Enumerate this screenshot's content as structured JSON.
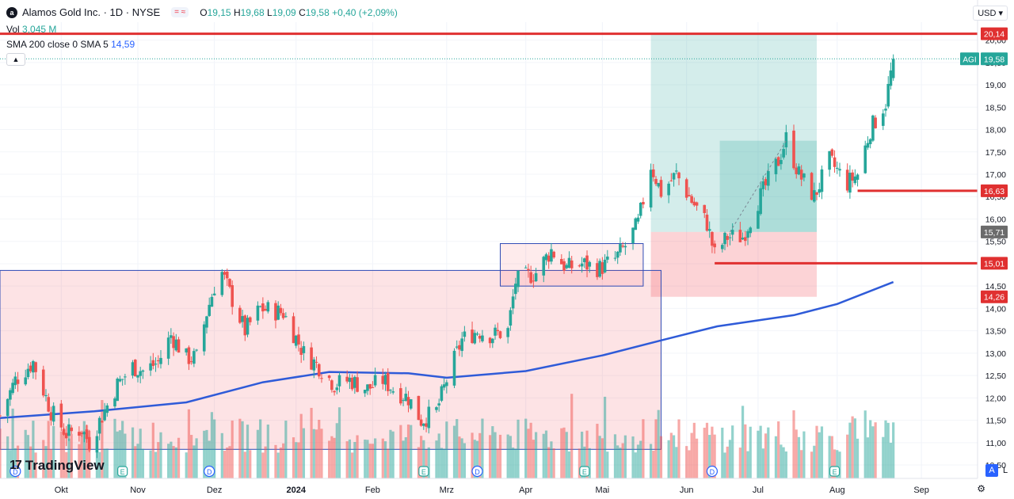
{
  "header": {
    "logo_letter": "a",
    "title": "Alamos Gold Inc. · 1D · NYSE",
    "ohlc": {
      "o_label": "O",
      "o": "19,15",
      "h_label": "H",
      "h": "19,68",
      "l_label": "L",
      "l": "19,09",
      "c_label": "C",
      "c": "19,58",
      "change": "+0,40 (+2,09%)"
    },
    "vol_label": "Vol",
    "vol_value": "3,045 M",
    "sma_label": "SMA 200 close 0 SMA 5",
    "sma_value": "14,59",
    "currency": "USD"
  },
  "branding": {
    "name": "TradingView",
    "mark": "17"
  },
  "controls": {
    "auto": "A",
    "log": "L",
    "settings_icon": "gear-icon",
    "collapse_icon": "chevron-up-icon"
  },
  "colors": {
    "up": "#26a69a",
    "down": "#ef5350",
    "sma": "#2f5bd8",
    "hline": "#e03030",
    "box": "#2e4bb5"
  },
  "chart_data": {
    "type": "candlestick",
    "ylim": [
      10.2,
      20.4
    ],
    "y_ticks": [
      10.5,
      11.0,
      11.5,
      12.0,
      12.5,
      13.0,
      13.5,
      14.0,
      14.5,
      15.0,
      15.5,
      16.0,
      16.5,
      17.0,
      17.5,
      18.0,
      18.5,
      19.0,
      19.5,
      20.0
    ],
    "y_tick_labels": [
      "10,50",
      "11,00",
      "11,50",
      "12,00",
      "12,50",
      "13,00",
      "13,50",
      "14,00",
      "14,50",
      "15,00",
      "15,50",
      "16,00",
      "16,50",
      "17,00",
      "17,50",
      "18,00",
      "18,50",
      "19,00",
      "19,50",
      "20,00"
    ],
    "x_labels": [
      {
        "label": "Okt",
        "date": "2023-10-02"
      },
      {
        "label": "Nov",
        "date": "2023-11-01"
      },
      {
        "label": "Dez",
        "date": "2023-12-01"
      },
      {
        "label": "2024",
        "date": "2024-01-02"
      },
      {
        "label": "Feb",
        "date": "2024-02-01"
      },
      {
        "label": "Mrz",
        "date": "2024-03-01"
      },
      {
        "label": "Apr",
        "date": "2024-04-01"
      },
      {
        "label": "Mai",
        "date": "2024-05-01"
      },
      {
        "label": "Jun",
        "date": "2024-06-03"
      },
      {
        "label": "Jul",
        "date": "2024-07-01"
      },
      {
        "label": "Aug",
        "date": "2024-08-01"
      },
      {
        "label": "Sep",
        "date": "2024-09-03"
      }
    ],
    "x_range": [
      "2023-09-08",
      "2024-09-25"
    ],
    "close_path": [
      [
        "2023-09-08",
        11.6
      ],
      [
        "2023-09-14",
        12.4
      ],
      [
        "2023-09-21",
        12.8
      ],
      [
        "2023-09-28",
        11.7
      ],
      [
        "2023-10-04",
        11.2
      ],
      [
        "2023-10-10",
        11.3
      ],
      [
        "2023-10-13",
        11.0
      ],
      [
        "2023-10-18",
        11.6
      ],
      [
        "2023-10-24",
        12.3
      ],
      [
        "2023-10-30",
        12.7
      ],
      [
        "2023-11-03",
        12.6
      ],
      [
        "2023-11-09",
        12.8
      ],
      [
        "2023-11-14",
        13.4
      ],
      [
        "2023-11-20",
        12.9
      ],
      [
        "2023-11-24",
        12.9
      ],
      [
        "2023-11-28",
        13.9
      ],
      [
        "2023-12-01",
        14.5
      ],
      [
        "2023-12-04",
        14.8
      ],
      [
        "2023-12-08",
        14.2
      ],
      [
        "2023-12-13",
        13.5
      ],
      [
        "2023-12-19",
        14.0
      ],
      [
        "2023-12-28",
        13.9
      ],
      [
        "2024-01-05",
        13.0
      ],
      [
        "2024-01-11",
        12.7
      ],
      [
        "2024-01-17",
        12.3
      ],
      [
        "2024-01-23",
        12.4
      ],
      [
        "2024-01-30",
        12.2
      ],
      [
        "2024-02-05",
        12.4
      ],
      [
        "2024-02-09",
        12.2
      ],
      [
        "2024-02-15",
        12.0
      ],
      [
        "2024-02-20",
        11.5
      ],
      [
        "2024-02-26",
        11.7
      ],
      [
        "2024-03-01",
        12.4
      ],
      [
        "2024-03-07",
        13.3
      ],
      [
        "2024-03-13",
        13.5
      ],
      [
        "2024-03-19",
        13.4
      ],
      [
        "2024-03-25",
        13.5
      ],
      [
        "2024-03-28",
        14.6
      ],
      [
        "2024-04-05",
        14.8
      ],
      [
        "2024-04-11",
        15.3
      ],
      [
        "2024-04-17",
        14.9
      ],
      [
        "2024-04-23",
        15.0
      ],
      [
        "2024-04-30",
        14.9
      ],
      [
        "2024-05-06",
        15.1
      ],
      [
        "2024-05-10",
        15.4
      ],
      [
        "2024-05-15",
        15.9
      ],
      [
        "2024-05-20",
        17.2
      ],
      [
        "2024-05-24",
        16.6
      ],
      [
        "2024-05-30",
        17.0
      ],
      [
        "2024-06-05",
        16.4
      ],
      [
        "2024-06-11",
        15.9
      ],
      [
        "2024-06-14",
        15.2
      ],
      [
        "2024-06-19",
        15.6
      ],
      [
        "2024-06-25",
        15.6
      ],
      [
        "2024-07-01",
        16.4
      ],
      [
        "2024-07-09",
        17.3
      ],
      [
        "2024-07-12",
        17.8
      ],
      [
        "2024-07-17",
        17.0
      ],
      [
        "2024-07-23",
        16.5
      ],
      [
        "2024-07-29",
        17.3
      ],
      [
        "2024-08-05",
        16.8
      ],
      [
        "2024-08-09",
        17.0
      ],
      [
        "2024-08-14",
        18.0
      ],
      [
        "2024-08-20",
        18.6
      ],
      [
        "2024-08-23",
        19.58
      ]
    ],
    "sma200_path": [
      [
        "2023-09-08",
        11.55
      ],
      [
        "2023-10-15",
        11.7
      ],
      [
        "2023-11-20",
        11.9
      ],
      [
        "2023-12-20",
        12.35
      ],
      [
        "2024-01-15",
        12.58
      ],
      [
        "2024-02-15",
        12.55
      ],
      [
        "2024-03-01",
        12.45
      ],
      [
        "2024-04-01",
        12.6
      ],
      [
        "2024-05-01",
        12.95
      ],
      [
        "2024-05-25",
        13.3
      ],
      [
        "2024-06-15",
        13.6
      ],
      [
        "2024-07-15",
        13.85
      ],
      [
        "2024-08-01",
        14.1
      ],
      [
        "2024-08-23",
        14.59
      ]
    ],
    "series": [
      {
        "name": "SMA 200 close 0 SMA 5",
        "last": 14.59
      }
    ],
    "horizontal_lines": [
      {
        "value": 20.14,
        "from": "2023-09-08",
        "label": "20,14"
      },
      {
        "value": 16.63,
        "from": "2024-08-09",
        "label": "16,63"
      },
      {
        "value": 15.01,
        "from": "2024-06-14",
        "label": "15,01"
      }
    ],
    "price_labels": [
      {
        "value": 20.14,
        "text": "20,14",
        "color": "#e03030"
      },
      {
        "value": 19.58,
        "text": "19,58",
        "color": "#26a69a",
        "tag": "AGI"
      },
      {
        "value": 16.63,
        "text": "16,63",
        "color": "#e03030"
      },
      {
        "value": 15.71,
        "text": "15,71",
        "color": "#6b6b6b"
      },
      {
        "value": 15.01,
        "text": "15,01",
        "color": "#e03030"
      },
      {
        "value": 14.26,
        "text": "14,26",
        "color": "#e03030"
      }
    ],
    "last_price": 19.58,
    "rectangles": [
      {
        "x0": "2023-09-08",
        "x1": "2024-05-24",
        "y0": 10.85,
        "y1": 14.85,
        "fill": "rgba(242,54,69,0.14)",
        "stroke": "#2e4bb5"
      },
      {
        "x0": "2024-03-22",
        "x1": "2024-05-17",
        "y0": 14.5,
        "y1": 15.45,
        "fill": "rgba(242,54,69,0.10)",
        "stroke": "#2e4bb5"
      }
    ],
    "position_tool": {
      "x0": "2024-05-20",
      "x1": "2024-07-24",
      "entry": 15.71,
      "target": 20.14,
      "stop": 14.26,
      "inner_x0": "2024-06-16",
      "inner_y1": 17.75
    },
    "events": [
      {
        "date": "2023-09-14",
        "kind": "D"
      },
      {
        "date": "2023-10-26",
        "kind": "E"
      },
      {
        "date": "2023-11-29",
        "kind": "D"
      },
      {
        "date": "2024-02-21",
        "kind": "E"
      },
      {
        "date": "2024-03-13",
        "kind": "D"
      },
      {
        "date": "2024-04-24",
        "kind": "E"
      },
      {
        "date": "2024-06-13",
        "kind": "D"
      },
      {
        "date": "2024-07-31",
        "kind": "E"
      }
    ],
    "volume_ylim": [
      0,
      12
    ]
  }
}
